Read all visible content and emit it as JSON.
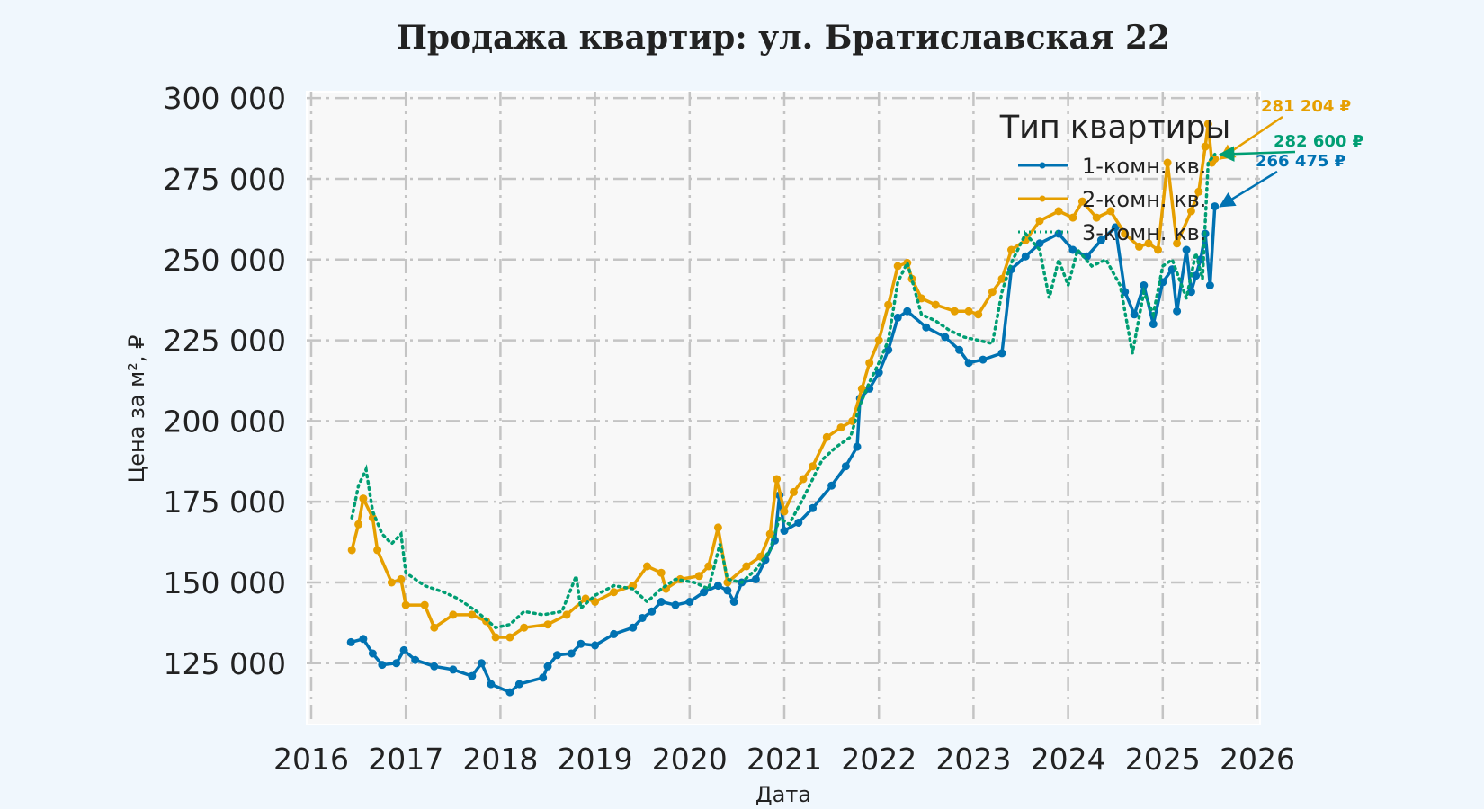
{
  "chart_data": {
    "type": "line",
    "title": "Продажа квартир: ул. Братиславская 22",
    "xlabel": "Дата",
    "ylabel": "Цена за м², ₽",
    "xlim": [
      2016.0,
      2026.0
    ],
    "ylim": [
      106000,
      302000
    ],
    "x_ticks": [
      2016,
      2017,
      2018,
      2019,
      2020,
      2021,
      2022,
      2023,
      2024,
      2025,
      2026
    ],
    "x_tick_labels": [
      "2016",
      "2017",
      "2018",
      "2019",
      "2020",
      "2021",
      "2022",
      "2023",
      "2024",
      "2025",
      "2026"
    ],
    "y_ticks": [
      125000,
      150000,
      175000,
      200000,
      225000,
      250000,
      275000,
      300000
    ],
    "y_tick_labels": [
      "125 000",
      "150 000",
      "175 000",
      "200 000",
      "225 000",
      "250 000",
      "275 000",
      "300 000"
    ],
    "grid": true,
    "legend": {
      "title": "Тип квартиры",
      "position": "top-right"
    },
    "series": [
      {
        "name": "1-комн. кв.",
        "color": "#0072b2",
        "style": "solid-marker",
        "points": [
          [
            2016.42,
            131500
          ],
          [
            2016.55,
            132500
          ],
          [
            2016.65,
            128000
          ],
          [
            2016.75,
            124500
          ],
          [
            2016.9,
            125000
          ],
          [
            2016.98,
            129000
          ],
          [
            2017.1,
            126000
          ],
          [
            2017.3,
            124000
          ],
          [
            2017.5,
            123000
          ],
          [
            2017.7,
            121000
          ],
          [
            2017.8,
            125000
          ],
          [
            2017.9,
            118500
          ],
          [
            2018.1,
            116000
          ],
          [
            2018.2,
            118500
          ],
          [
            2018.45,
            120500
          ],
          [
            2018.5,
            124000
          ],
          [
            2018.6,
            127500
          ],
          [
            2018.75,
            128000
          ],
          [
            2018.85,
            131000
          ],
          [
            2019.0,
            130500
          ],
          [
            2019.2,
            134000
          ],
          [
            2019.4,
            136000
          ],
          [
            2019.5,
            139000
          ],
          [
            2019.6,
            141000
          ],
          [
            2019.7,
            144000
          ],
          [
            2019.85,
            143000
          ],
          [
            2020.0,
            144000
          ],
          [
            2020.15,
            147000
          ],
          [
            2020.3,
            149000
          ],
          [
            2020.4,
            147500
          ],
          [
            2020.47,
            144000
          ],
          [
            2020.55,
            150000
          ],
          [
            2020.7,
            151000
          ],
          [
            2020.8,
            157000
          ],
          [
            2020.9,
            163000
          ],
          [
            2020.95,
            177000
          ],
          [
            2021.0,
            166000
          ],
          [
            2021.15,
            168500
          ],
          [
            2021.3,
            173000
          ],
          [
            2021.5,
            180000
          ],
          [
            2021.65,
            186000
          ],
          [
            2021.77,
            192000
          ],
          [
            2021.8,
            207000
          ],
          [
            2021.9,
            210000
          ],
          [
            2022.0,
            215000
          ],
          [
            2022.1,
            222000
          ],
          [
            2022.2,
            232000
          ],
          [
            2022.3,
            234000
          ],
          [
            2022.5,
            229000
          ],
          [
            2022.7,
            226000
          ],
          [
            2022.85,
            222000
          ],
          [
            2022.95,
            218000
          ],
          [
            2023.1,
            219000
          ],
          [
            2023.3,
            221000
          ],
          [
            2023.4,
            247000
          ],
          [
            2023.55,
            251000
          ],
          [
            2023.7,
            255000
          ],
          [
            2023.9,
            258000
          ],
          [
            2024.05,
            253000
          ],
          [
            2024.2,
            251000
          ],
          [
            2024.35,
            256000
          ],
          [
            2024.5,
            260000
          ],
          [
            2024.6,
            240000
          ],
          [
            2024.7,
            233000
          ],
          [
            2024.8,
            242000
          ],
          [
            2024.9,
            230000
          ],
          [
            2025.0,
            243000
          ],
          [
            2025.1,
            247000
          ],
          [
            2025.15,
            234000
          ],
          [
            2025.25,
            253000
          ],
          [
            2025.3,
            240000
          ],
          [
            2025.35,
            245000
          ],
          [
            2025.4,
            250000
          ],
          [
            2025.45,
            258000
          ],
          [
            2025.5,
            242000
          ],
          [
            2025.55,
            266475
          ]
        ]
      },
      {
        "name": "2-комн. кв.",
        "color": "#e69f00",
        "style": "solid-marker",
        "points": [
          [
            2016.43,
            160000
          ],
          [
            2016.5,
            168000
          ],
          [
            2016.55,
            176000
          ],
          [
            2016.65,
            170000
          ],
          [
            2016.7,
            160000
          ],
          [
            2016.85,
            150000
          ],
          [
            2016.95,
            151000
          ],
          [
            2017.0,
            143000
          ],
          [
            2017.2,
            143000
          ],
          [
            2017.3,
            136000
          ],
          [
            2017.5,
            140000
          ],
          [
            2017.7,
            140000
          ],
          [
            2017.85,
            138000
          ],
          [
            2017.95,
            133000
          ],
          [
            2018.1,
            133000
          ],
          [
            2018.25,
            136000
          ],
          [
            2018.5,
            137000
          ],
          [
            2018.7,
            140000
          ],
          [
            2018.9,
            145000
          ],
          [
            2019.0,
            144000
          ],
          [
            2019.2,
            147000
          ],
          [
            2019.4,
            149000
          ],
          [
            2019.55,
            155000
          ],
          [
            2019.7,
            153000
          ],
          [
            2019.75,
            148000
          ],
          [
            2019.9,
            151000
          ],
          [
            2020.1,
            152000
          ],
          [
            2020.2,
            155000
          ],
          [
            2020.3,
            167000
          ],
          [
            2020.4,
            150000
          ],
          [
            2020.6,
            155000
          ],
          [
            2020.75,
            158000
          ],
          [
            2020.85,
            165000
          ],
          [
            2020.92,
            182000
          ],
          [
            2021.0,
            172000
          ],
          [
            2021.1,
            178000
          ],
          [
            2021.2,
            182000
          ],
          [
            2021.3,
            186000
          ],
          [
            2021.45,
            195000
          ],
          [
            2021.6,
            198000
          ],
          [
            2021.72,
            200000
          ],
          [
            2021.82,
            210000
          ],
          [
            2021.9,
            218000
          ],
          [
            2022.0,
            225000
          ],
          [
            2022.1,
            236000
          ],
          [
            2022.2,
            248000
          ],
          [
            2022.3,
            249000
          ],
          [
            2022.35,
            244000
          ],
          [
            2022.45,
            238000
          ],
          [
            2022.6,
            236000
          ],
          [
            2022.8,
            234000
          ],
          [
            2022.95,
            234000
          ],
          [
            2023.05,
            233000
          ],
          [
            2023.2,
            240000
          ],
          [
            2023.3,
            244000
          ],
          [
            2023.4,
            253000
          ],
          [
            2023.55,
            256000
          ],
          [
            2023.7,
            262000
          ],
          [
            2023.9,
            265000
          ],
          [
            2024.05,
            263000
          ],
          [
            2024.15,
            268000
          ],
          [
            2024.3,
            263000
          ],
          [
            2024.45,
            265000
          ],
          [
            2024.6,
            258000
          ],
          [
            2024.75,
            254000
          ],
          [
            2024.85,
            255000
          ],
          [
            2024.95,
            253000
          ],
          [
            2025.05,
            280000
          ],
          [
            2025.15,
            255000
          ],
          [
            2025.3,
            265000
          ],
          [
            2025.38,
            271000
          ],
          [
            2025.45,
            285000
          ],
          [
            2025.48,
            292000
          ],
          [
            2025.52,
            280000
          ],
          [
            2025.55,
            281204
          ]
        ]
      },
      {
        "name": "3-комн. кв.",
        "color": "#009e73",
        "style": "dotted",
        "points": [
          [
            2016.43,
            170000
          ],
          [
            2016.5,
            180000
          ],
          [
            2016.58,
            185000
          ],
          [
            2016.65,
            172000
          ],
          [
            2016.75,
            165000
          ],
          [
            2016.85,
            162000
          ],
          [
            2016.95,
            165000
          ],
          [
            2017.0,
            153000
          ],
          [
            2017.2,
            149000
          ],
          [
            2017.4,
            147000
          ],
          [
            2017.55,
            145000
          ],
          [
            2017.75,
            141000
          ],
          [
            2017.95,
            136000
          ],
          [
            2018.1,
            137000
          ],
          [
            2018.25,
            141000
          ],
          [
            2018.45,
            140000
          ],
          [
            2018.65,
            141000
          ],
          [
            2018.8,
            152000
          ],
          [
            2018.85,
            142000
          ],
          [
            2019.0,
            146000
          ],
          [
            2019.2,
            149000
          ],
          [
            2019.4,
            148000
          ],
          [
            2019.55,
            144000
          ],
          [
            2019.7,
            148000
          ],
          [
            2019.85,
            151000
          ],
          [
            2020.05,
            150000
          ],
          [
            2020.2,
            148000
          ],
          [
            2020.32,
            162000
          ],
          [
            2020.4,
            151000
          ],
          [
            2020.55,
            150000
          ],
          [
            2020.7,
            154000
          ],
          [
            2020.85,
            160000
          ],
          [
            2020.95,
            170000
          ],
          [
            2021.05,
            168000
          ],
          [
            2021.2,
            176000
          ],
          [
            2021.4,
            188000
          ],
          [
            2021.55,
            192000
          ],
          [
            2021.7,
            195000
          ],
          [
            2021.8,
            205000
          ],
          [
            2021.9,
            212000
          ],
          [
            2022.0,
            218000
          ],
          [
            2022.1,
            225000
          ],
          [
            2022.2,
            243000
          ],
          [
            2022.3,
            249000
          ],
          [
            2022.45,
            233000
          ],
          [
            2022.6,
            231000
          ],
          [
            2022.75,
            228000
          ],
          [
            2022.9,
            226000
          ],
          [
            2023.05,
            225000
          ],
          [
            2023.2,
            224000
          ],
          [
            2023.3,
            240000
          ],
          [
            2023.4,
            249000
          ],
          [
            2023.55,
            258000
          ],
          [
            2023.7,
            253000
          ],
          [
            2023.8,
            238000
          ],
          [
            2023.9,
            250000
          ],
          [
            2024.0,
            242000
          ],
          [
            2024.1,
            253000
          ],
          [
            2024.25,
            248000
          ],
          [
            2024.4,
            250000
          ],
          [
            2024.55,
            242000
          ],
          [
            2024.68,
            221000
          ],
          [
            2024.8,
            240000
          ],
          [
            2024.9,
            233000
          ],
          [
            2025.0,
            248000
          ],
          [
            2025.1,
            250000
          ],
          [
            2025.25,
            238000
          ],
          [
            2025.35,
            252000
          ],
          [
            2025.42,
            244000
          ],
          [
            2025.48,
            280000
          ],
          [
            2025.55,
            282600
          ]
        ]
      }
    ],
    "annotations": [
      {
        "text": "281 204 ₽",
        "series": "2-комн. кв.",
        "color": "#e69f00"
      },
      {
        "text": "282 600 ₽",
        "series": "3-комн. кв.",
        "color": "#009e73"
      },
      {
        "text": "266 475 ₽",
        "series": "1-комн. кв.",
        "color": "#0072b2"
      }
    ]
  }
}
